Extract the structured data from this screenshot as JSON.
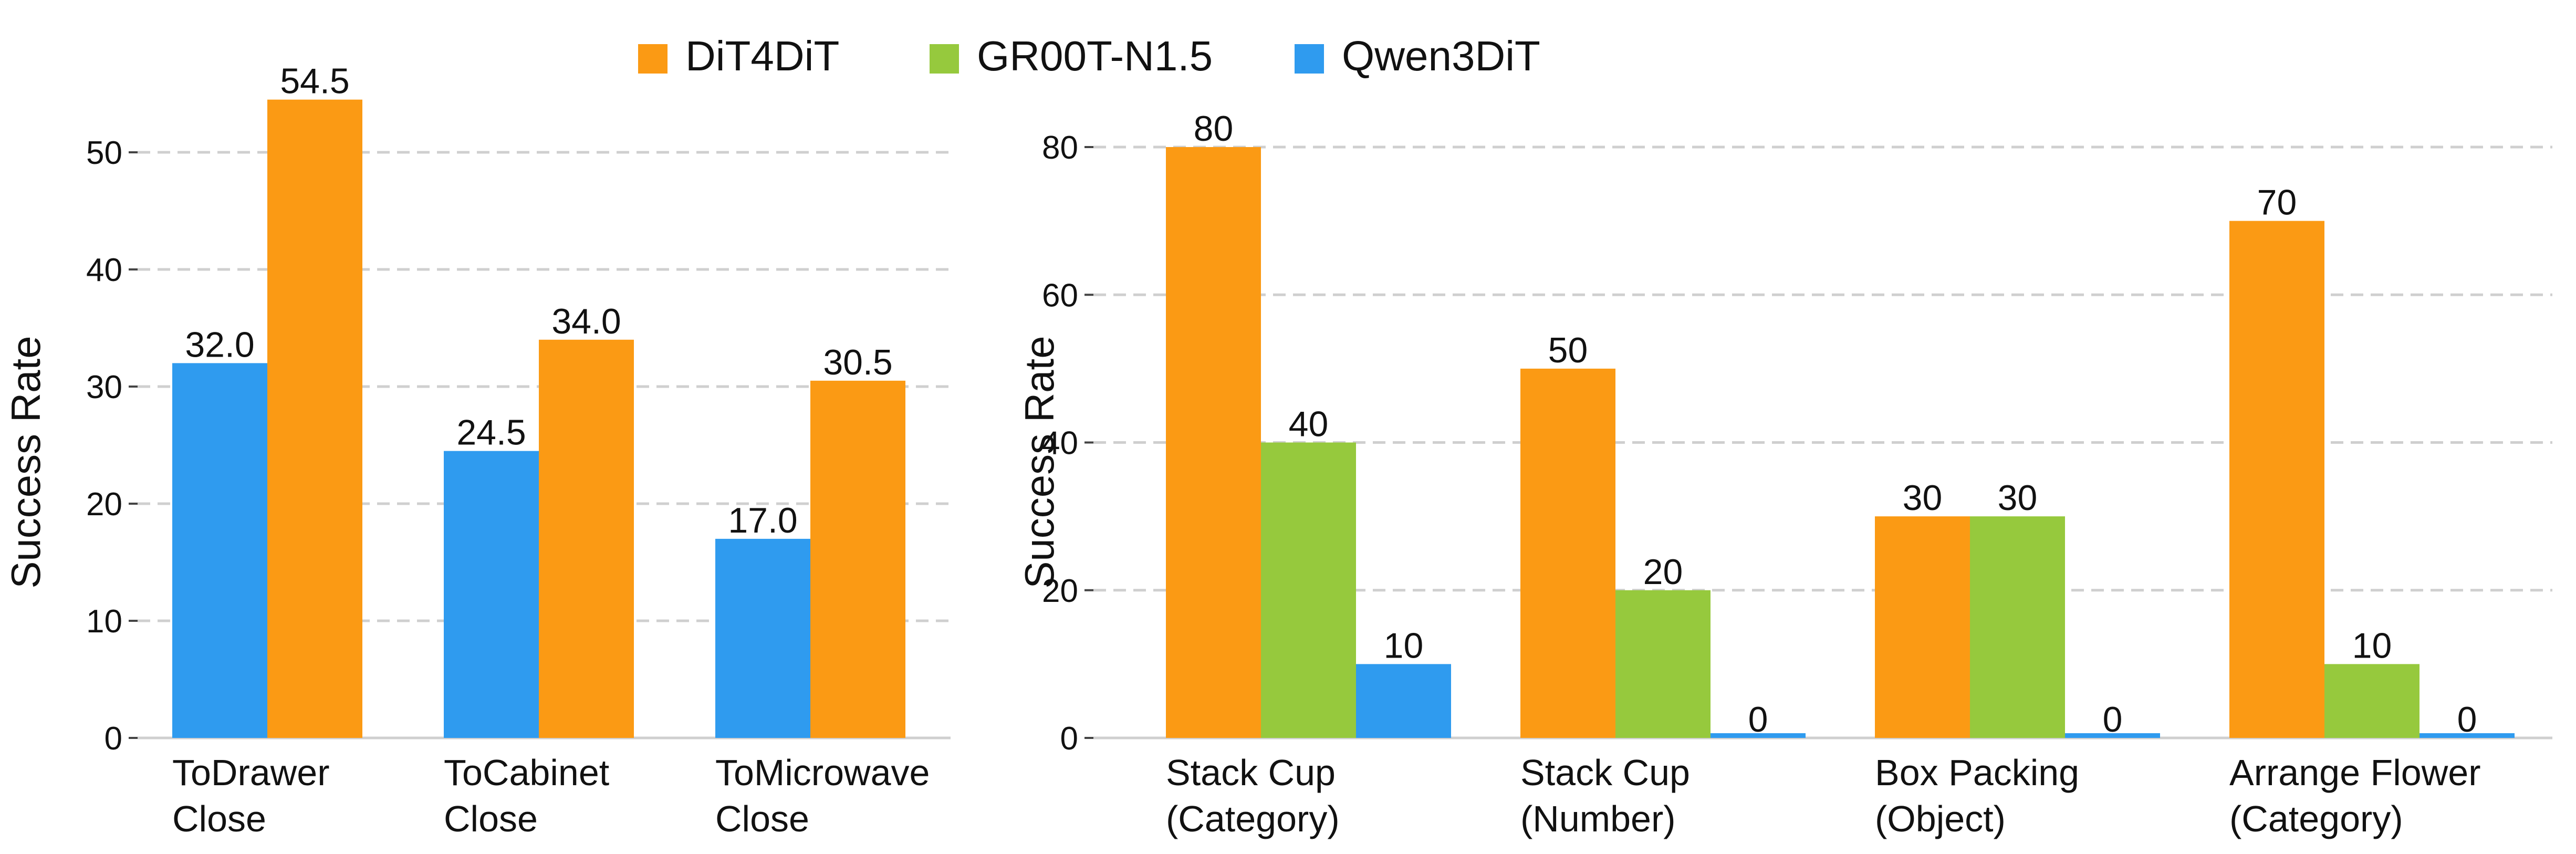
{
  "colors": {
    "DiT4DiT": "#fb9a14",
    "GR00T-N1.5": "#96c93d",
    "Qwen3DiT": "#2f9bef"
  },
  "legend": [
    "DiT4DiT",
    "GR00T-N1.5",
    "Qwen3DiT"
  ],
  "chart_data": [
    {
      "type": "bar",
      "title": "",
      "xlabel": "",
      "ylabel": "Success Rate",
      "ylim": [
        0,
        57
      ],
      "yticks": [
        0,
        10,
        20,
        30,
        40,
        50
      ],
      "grid": true,
      "categories": [
        [
          "ToDrawer",
          "Close"
        ],
        [
          "ToCabinet",
          "Close"
        ],
        [
          "ToMicrowave",
          "Close"
        ]
      ],
      "series": [
        {
          "name": "Qwen3DiT",
          "values": [
            32.0,
            24.5,
            17.0
          ],
          "labels": [
            "32.0",
            "24.5",
            "17.0"
          ]
        },
        {
          "name": "DiT4DiT",
          "values": [
            54.5,
            34.0,
            30.5
          ],
          "labels": [
            "54.5",
            "34.0",
            "30.5"
          ]
        }
      ]
    },
    {
      "type": "bar",
      "title": "",
      "xlabel": "",
      "ylabel": "Success Rate",
      "ylim": [
        0,
        85
      ],
      "yticks": [
        0,
        20,
        40,
        60,
        80
      ],
      "grid": true,
      "categories": [
        [
          "Stack Cup",
          "(Category)"
        ],
        [
          "Stack Cup",
          "(Number)"
        ],
        [
          "Box Packing",
          "(Object)"
        ],
        [
          "Arrange Flower",
          "(Category)"
        ]
      ],
      "series": [
        {
          "name": "DiT4DiT",
          "values": [
            80,
            50,
            30,
            70
          ],
          "labels": [
            "80",
            "50",
            "30",
            "70"
          ]
        },
        {
          "name": "GR00T-N1.5",
          "values": [
            40,
            20,
            30,
            10
          ],
          "labels": [
            "40",
            "20",
            "30",
            "10"
          ]
        },
        {
          "name": "Qwen3DiT",
          "values": [
            10,
            0,
            0,
            0
          ],
          "labels": [
            "10",
            "0",
            "0",
            "0"
          ]
        }
      ]
    }
  ]
}
